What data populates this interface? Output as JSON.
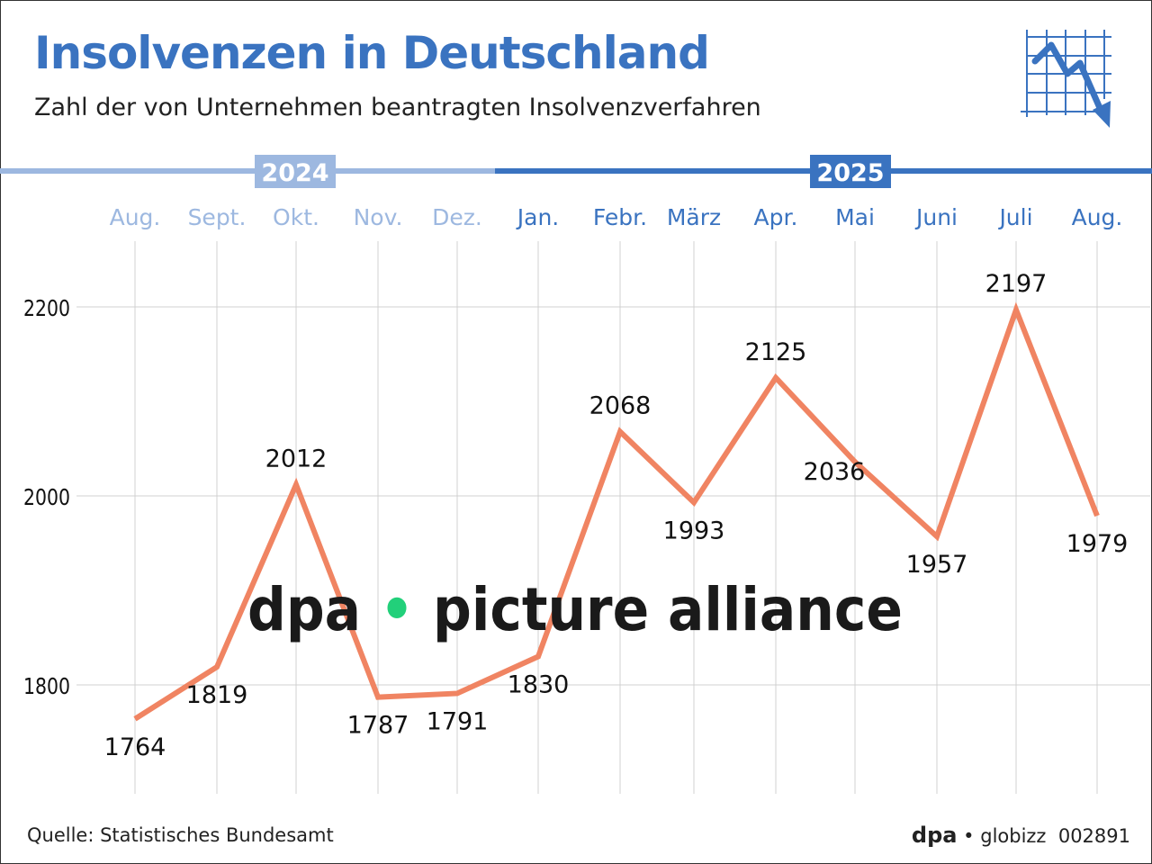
{
  "title": "Insolvenzen in Deutschland",
  "subtitle": "Zahl der von Unternehmen beantragten Insolvenzverfahren",
  "source": "Quelle: Statistisches Bundesamt",
  "credit": {
    "brand": "dpa",
    "product": "globizz",
    "id": "002891"
  },
  "watermark": "dpa • picture alliance",
  "icon": "line-chart-down-icon",
  "colors": {
    "title": "#3a73c0",
    "line": "#f08462",
    "year2024": "#9db8e0",
    "year2025": "#3a73c0",
    "grid": "#d0d0d0"
  },
  "chart_data": {
    "type": "line",
    "years": [
      {
        "label": "2024",
        "months": 5
      },
      {
        "label": "2025",
        "months": 8
      }
    ],
    "categories": [
      "Aug.",
      "Sept.",
      "Okt.",
      "Nov.",
      "Dez.",
      "Jan.",
      "Febr.",
      "März",
      "Apr.",
      "Mai",
      "Juni",
      "Juli",
      "Aug."
    ],
    "values": [
      1764,
      1819,
      2012,
      1787,
      1791,
      1830,
      2068,
      1993,
      2125,
      2036,
      1957,
      2197,
      1979
    ],
    "labels": [
      "1764",
      "1819",
      "2012",
      "1787",
      "1791",
      "1830",
      "2068",
      "1993",
      "2125",
      "2036",
      "1957",
      "2197",
      "1979"
    ],
    "yticks": [
      1800,
      2000,
      2200
    ],
    "ylim": [
      1660,
      2270
    ],
    "grid": true
  }
}
